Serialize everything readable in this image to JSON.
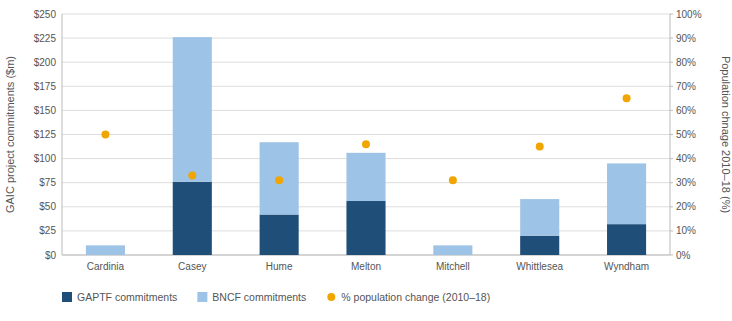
{
  "chart_data": {
    "type": "bar",
    "stacked": true,
    "categories": [
      "Cardinia",
      "Casey",
      "Hume",
      "Melton",
      "Mitchell",
      "Whittlesea",
      "Wyndham"
    ],
    "series": [
      {
        "name": "GAPTF commitments",
        "color": "#1F4E79",
        "values": [
          0,
          76,
          42,
          56,
          0,
          20,
          32
        ]
      },
      {
        "name": "BNCF commitments",
        "color": "#9DC3E6",
        "values": [
          10,
          150,
          75,
          50,
          10,
          38,
          63
        ]
      },
      {
        "name": "% population change (2010–18)",
        "type": "scatter",
        "marker": "circle",
        "axis": "y2",
        "color": "#F0A500",
        "values": [
          50,
          33,
          31,
          46,
          31,
          45,
          65
        ]
      }
    ],
    "ylabel": "GAIC project commitments ($m)",
    "y2label": "Population chnage 2010–18 (%)",
    "ylim": [
      0,
      250
    ],
    "yticks": [
      {
        "value": 0,
        "label": "$0"
      },
      {
        "value": 25,
        "label": "$25"
      },
      {
        "value": 50,
        "label": "$50"
      },
      {
        "value": 75,
        "label": "$75"
      },
      {
        "value": 100,
        "label": "$100"
      },
      {
        "value": 125,
        "label": "$125"
      },
      {
        "value": 150,
        "label": "$150"
      },
      {
        "value": 175,
        "label": "$175"
      },
      {
        "value": 200,
        "label": "$200"
      },
      {
        "value": 225,
        "label": "$225"
      },
      {
        "value": 250,
        "label": "$250"
      }
    ],
    "y2lim": [
      0,
      100
    ],
    "y2ticks": [
      {
        "value": 0,
        "label": "0%"
      },
      {
        "value": 10,
        "label": "10%"
      },
      {
        "value": 20,
        "label": "20%"
      },
      {
        "value": 30,
        "label": "30%"
      },
      {
        "value": 40,
        "label": "40%"
      },
      {
        "value": 50,
        "label": "50%"
      },
      {
        "value": 60,
        "label": "60%"
      },
      {
        "value": 70,
        "label": "70%"
      },
      {
        "value": 80,
        "label": "80%"
      },
      {
        "value": 90,
        "label": "90%"
      },
      {
        "value": 100,
        "label": "100%"
      }
    ],
    "grid": true,
    "legend": "bottom"
  }
}
